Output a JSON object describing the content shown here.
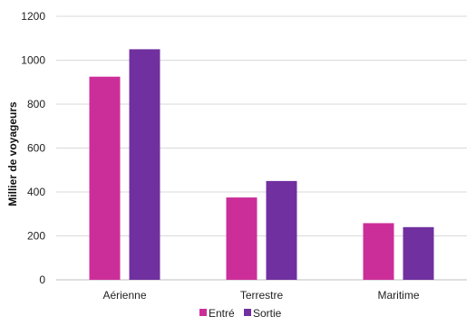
{
  "chart_data": {
    "type": "bar",
    "categories": [
      "Aérienne",
      "Terrestre",
      "Maritime"
    ],
    "series": [
      {
        "name": "Entré",
        "values": [
          925,
          375,
          258
        ],
        "color": "#cc2e99"
      },
      {
        "name": "Sortie",
        "values": [
          1050,
          450,
          240
        ],
        "color": "#7030a0"
      }
    ],
    "ylabel": "Millier de voyageurs",
    "xlabel": "",
    "ylim": [
      0,
      1200
    ],
    "yticks": [
      0,
      200,
      400,
      600,
      800,
      1000,
      1200
    ],
    "grid": true,
    "legend_position": "bottom"
  }
}
